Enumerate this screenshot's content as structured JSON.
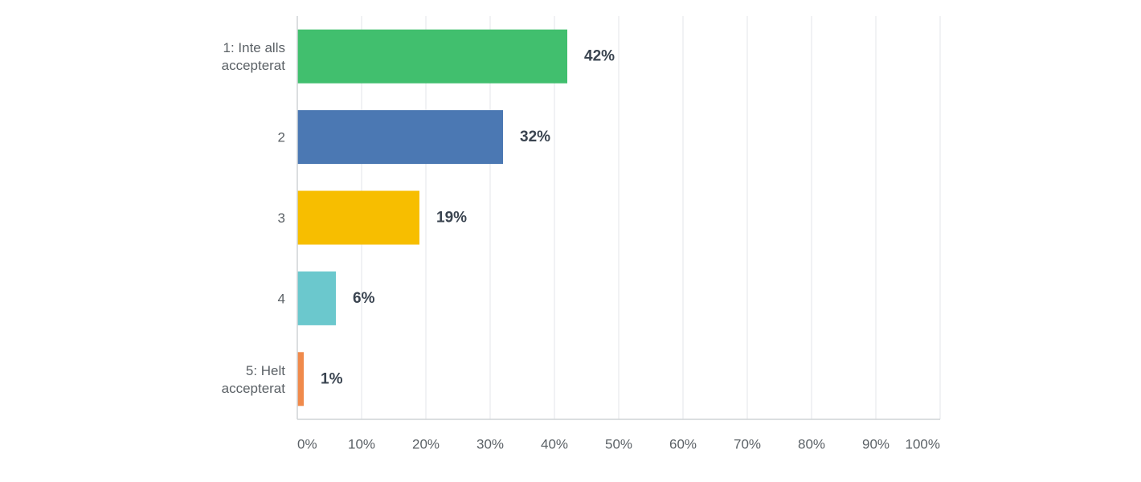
{
  "chart_data": {
    "type": "bar",
    "orientation": "horizontal",
    "categories": [
      [
        "1: Inte alls",
        "accepterat"
      ],
      [
        "2"
      ],
      [
        "3"
      ],
      [
        "4"
      ],
      [
        "5: Helt",
        "accepterat"
      ]
    ],
    "values": [
      42,
      32,
      19,
      6,
      1
    ],
    "value_labels": [
      "42%",
      "32%",
      "19%",
      "6%",
      "1%"
    ],
    "colors": [
      "#41bf6e",
      "#4b78b3",
      "#f7be00",
      "#6bc8cd",
      "#f08a4b"
    ],
    "xlim": [
      0,
      100
    ],
    "x_ticks": [
      0,
      10,
      20,
      30,
      40,
      50,
      60,
      70,
      80,
      90,
      100
    ],
    "x_tick_labels": [
      "0%",
      "10%",
      "20%",
      "30%",
      "40%",
      "50%",
      "60%",
      "70%",
      "80%",
      "90%",
      "100%"
    ],
    "grid": true,
    "title": "",
    "xlabel": "",
    "ylabel": ""
  }
}
